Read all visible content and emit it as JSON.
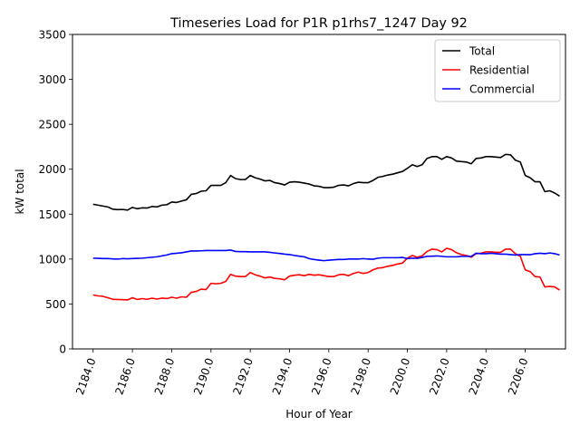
{
  "chart_data": {
    "type": "line",
    "title": "Timeseries Load for P1R p1rhs7_1247  Day 92",
    "xlabel": "Hour of Year",
    "ylabel": "kW total",
    "xlim": [
      2182.95,
      2208.05
    ],
    "ylim": [
      0,
      3500
    ],
    "xticks": [
      2184,
      2186,
      2188,
      2190,
      2192,
      2194,
      2196,
      2198,
      2200,
      2202,
      2204,
      2206
    ],
    "xtick_labels": [
      "2184.0",
      "2186.0",
      "2188.0",
      "2190.0",
      "2192.0",
      "2194.0",
      "2196.0",
      "2198.0",
      "2200.0",
      "2202.0",
      "2204.0",
      "2206.0"
    ],
    "yticks": [
      0,
      500,
      1000,
      1500,
      2000,
      2500,
      3000,
      3500
    ],
    "ytick_labels": [
      "0",
      "500",
      "1000",
      "1500",
      "2000",
      "2500",
      "3000",
      "3500"
    ],
    "grid": false,
    "legend_position": "top-right",
    "x": [
      2184.0,
      2184.25,
      2184.5,
      2184.75,
      2185.0,
      2185.25,
      2185.5,
      2185.75,
      2186.0,
      2186.25,
      2186.5,
      2186.75,
      2187.0,
      2187.25,
      2187.5,
      2187.75,
      2188.0,
      2188.25,
      2188.5,
      2188.75,
      2189.0,
      2189.25,
      2189.5,
      2189.75,
      2190.0,
      2190.25,
      2190.5,
      2190.75,
      2191.0,
      2191.25,
      2191.5,
      2191.75,
      2192.0,
      2192.25,
      2192.5,
      2192.75,
      2193.0,
      2193.25,
      2193.5,
      2193.75,
      2194.0,
      2194.25,
      2194.5,
      2194.75,
      2195.0,
      2195.25,
      2195.5,
      2195.75,
      2196.0,
      2196.25,
      2196.5,
      2196.75,
      2197.0,
      2197.25,
      2197.5,
      2197.75,
      2198.0,
      2198.25,
      2198.5,
      2198.75,
      2199.0,
      2199.25,
      2199.5,
      2199.75,
      2200.0,
      2200.25,
      2200.5,
      2200.75,
      2201.0,
      2201.25,
      2201.5,
      2201.75,
      2202.0,
      2202.25,
      2202.5,
      2202.75,
      2203.0,
      2203.25,
      2203.5,
      2203.75,
      2204.0,
      2204.25,
      2204.5,
      2204.75,
      2205.0,
      2205.25,
      2205.5,
      2205.75,
      2206.0,
      2206.25,
      2206.5,
      2206.75,
      2207.0,
      2207.25,
      2207.5,
      2207.75
    ],
    "series": [
      {
        "name": "Total",
        "color": "#000000",
        "values": [
          1610,
          1600,
          1590,
          1580,
          1555,
          1550,
          1552,
          1545,
          1575,
          1560,
          1570,
          1568,
          1585,
          1580,
          1600,
          1605,
          1635,
          1630,
          1645,
          1660,
          1720,
          1730,
          1755,
          1760,
          1820,
          1820,
          1820,
          1850,
          1930,
          1895,
          1885,
          1885,
          1930,
          1905,
          1890,
          1870,
          1875,
          1850,
          1840,
          1825,
          1855,
          1860,
          1855,
          1845,
          1835,
          1815,
          1810,
          1795,
          1795,
          1800,
          1820,
          1825,
          1815,
          1840,
          1855,
          1850,
          1850,
          1875,
          1910,
          1920,
          1935,
          1945,
          1960,
          1975,
          2010,
          2050,
          2030,
          2050,
          2120,
          2140,
          2140,
          2110,
          2140,
          2125,
          2090,
          2085,
          2080,
          2060,
          2120,
          2125,
          2140,
          2140,
          2135,
          2130,
          2165,
          2160,
          2100,
          2080,
          1930,
          1905,
          1860,
          1860,
          1750,
          1760,
          1735,
          1700
        ]
      },
      {
        "name": "Residential",
        "color": "#ff0000",
        "values": [
          600,
          590,
          585,
          570,
          552,
          550,
          548,
          545,
          570,
          550,
          560,
          552,
          565,
          555,
          565,
          560,
          575,
          565,
          580,
          575,
          630,
          640,
          665,
          660,
          730,
          725,
          730,
          750,
          830,
          810,
          805,
          805,
          850,
          825,
          810,
          790,
          800,
          785,
          780,
          770,
          810,
          820,
          825,
          815,
          830,
          820,
          825,
          815,
          805,
          805,
          825,
          830,
          815,
          840,
          855,
          840,
          850,
          880,
          900,
          905,
          920,
          930,
          945,
          955,
          1010,
          1040,
          1020,
          1035,
          1085,
          1110,
          1105,
          1080,
          1120,
          1105,
          1070,
          1050,
          1040,
          1020,
          1060,
          1065,
          1080,
          1080,
          1075,
          1075,
          1110,
          1110,
          1060,
          1030,
          880,
          860,
          805,
          800,
          690,
          695,
          690,
          655
        ]
      },
      {
        "name": "Commercial",
        "color": "#0000ff",
        "values": [
          1010,
          1008,
          1005,
          1005,
          1002,
          1000,
          1005,
          1003,
          1005,
          1008,
          1010,
          1015,
          1020,
          1025,
          1035,
          1045,
          1060,
          1065,
          1070,
          1080,
          1090,
          1090,
          1092,
          1095,
          1095,
          1095,
          1095,
          1095,
          1100,
          1085,
          1082,
          1082,
          1080,
          1080,
          1080,
          1080,
          1075,
          1068,
          1062,
          1055,
          1050,
          1040,
          1032,
          1025,
          1005,
          995,
          988,
          982,
          988,
          992,
          995,
          995,
          1000,
          1000,
          1000,
          1005,
          1000,
          998,
          1010,
          1015,
          1015,
          1015,
          1015,
          1018,
          1005,
          1010,
          1008,
          1018,
          1030,
          1032,
          1035,
          1030,
          1025,
          1025,
          1025,
          1030,
          1030,
          1030,
          1065,
          1060,
          1060,
          1065,
          1060,
          1055,
          1055,
          1050,
          1045,
          1050,
          1050,
          1048,
          1060,
          1065,
          1060,
          1068,
          1060,
          1045
        ]
      }
    ]
  }
}
